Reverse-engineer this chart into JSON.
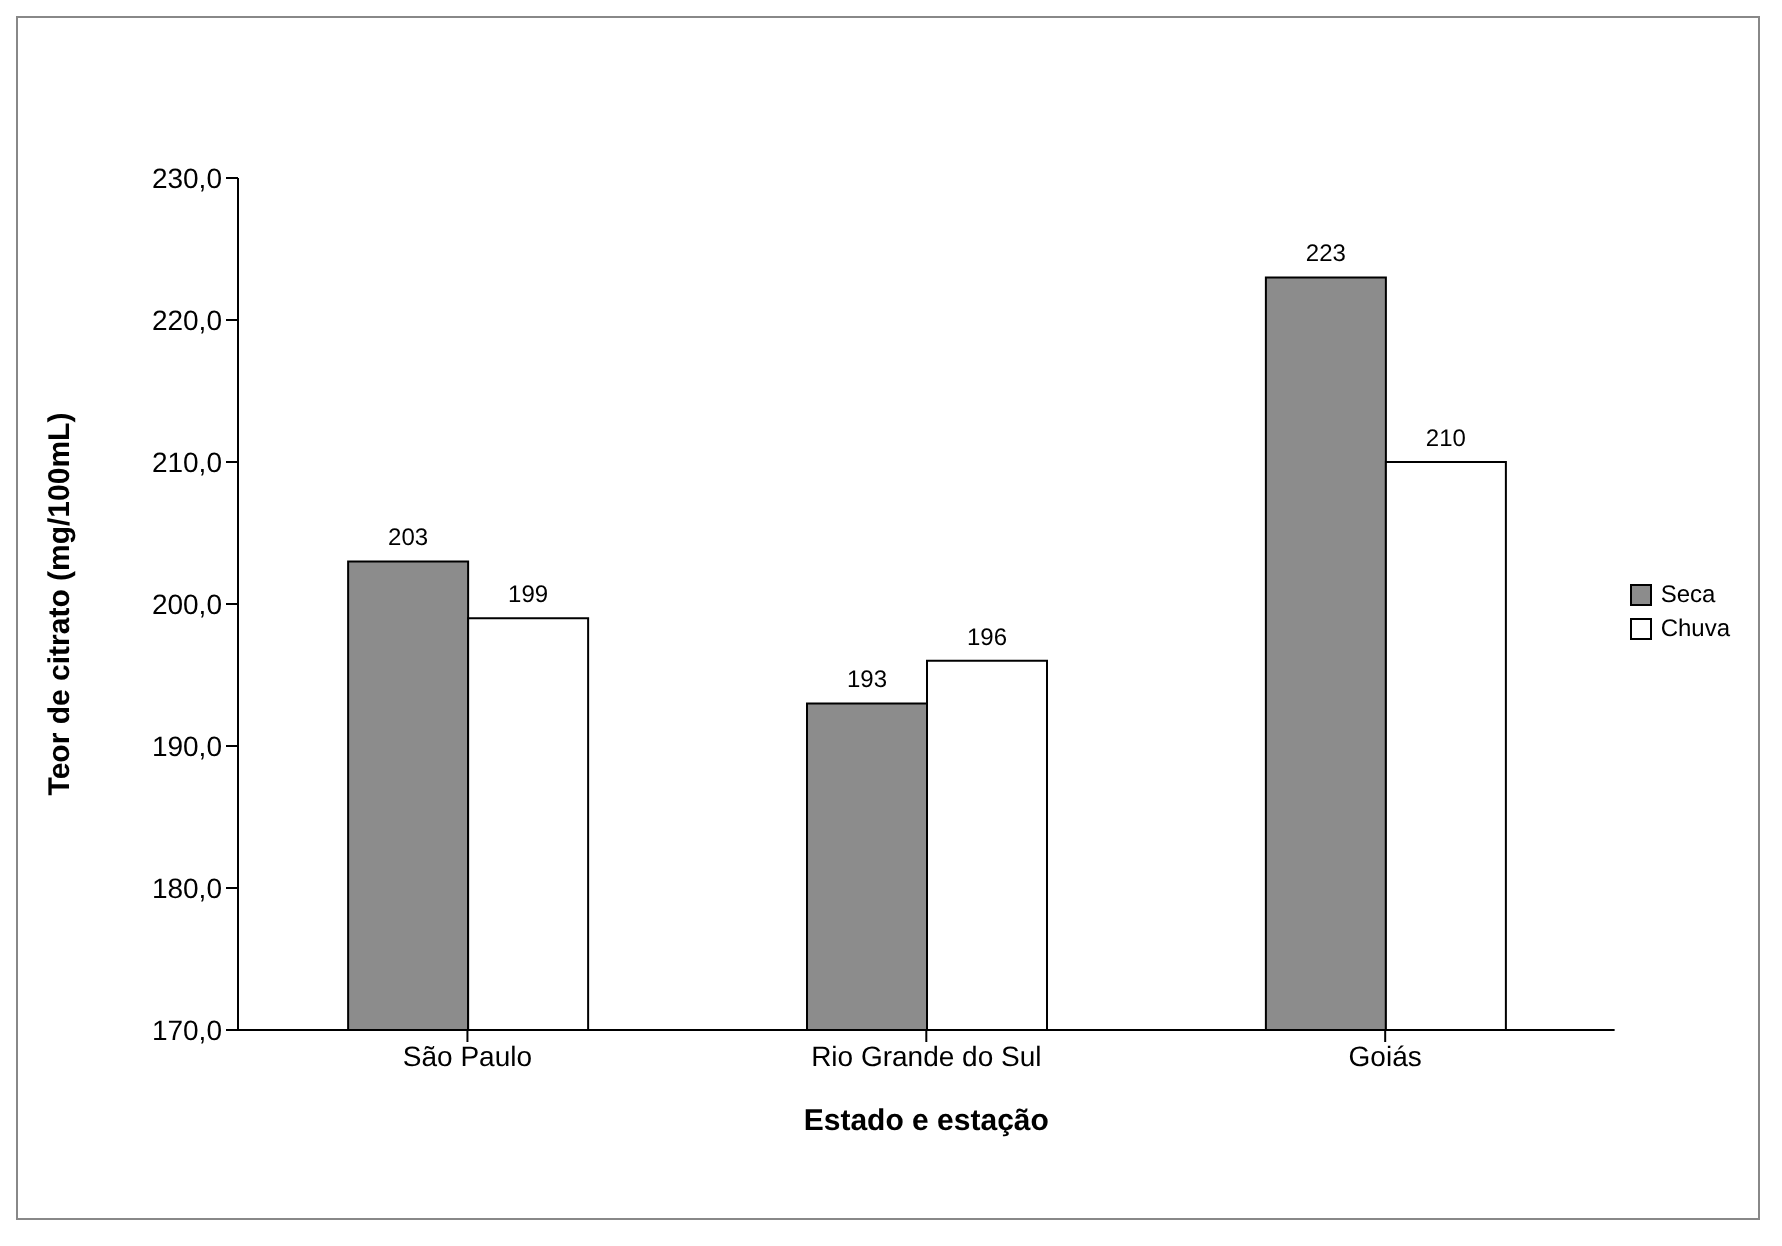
{
  "chart_data": {
    "type": "bar",
    "xlabel": "Estado e estação",
    "ylabel": "Teor de citrato (mg/100mL)",
    "categories": [
      "São Paulo",
      "Rio Grande do Sul",
      "Goiás"
    ],
    "series": [
      {
        "name": "Seca",
        "color": "#8c8c8c",
        "values": [
          203,
          193,
          223
        ]
      },
      {
        "name": "Chuva",
        "color": "#ffffff",
        "values": [
          199,
          196,
          210
        ]
      }
    ],
    "ylim": [
      170,
      230
    ],
    "yticks": [
      {
        "value": 170,
        "label": "170,0"
      },
      {
        "value": 180,
        "label": "180,0"
      },
      {
        "value": 190,
        "label": "190,0"
      },
      {
        "value": 200,
        "label": "200,0"
      },
      {
        "value": 210,
        "label": "210,0"
      },
      {
        "value": 220,
        "label": "220,0"
      },
      {
        "value": 230,
        "label": "230,0"
      }
    ],
    "data_labels": true,
    "grid": false,
    "legend": "right"
  }
}
